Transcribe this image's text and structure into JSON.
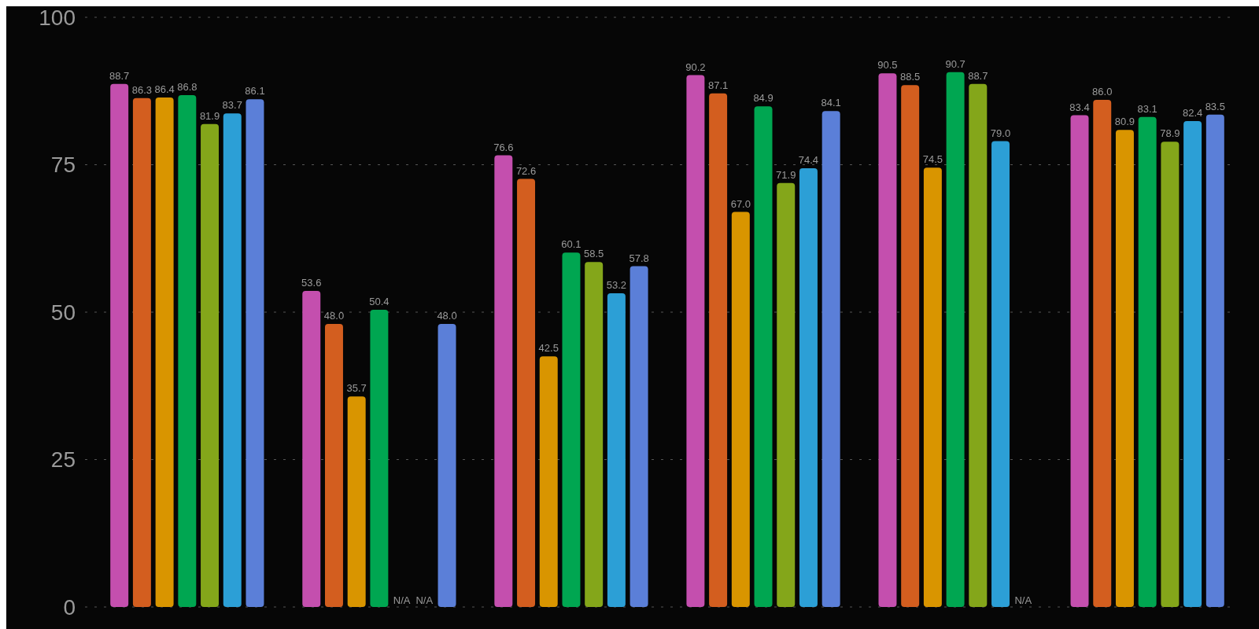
{
  "chart_data": {
    "type": "bar",
    "categories": [
      null,
      null,
      null,
      null,
      null,
      null
    ],
    "series": [
      {
        "color": "#c44fae",
        "values": [
          88.7,
          53.6,
          76.6,
          90.2,
          90.5,
          83.4
        ]
      },
      {
        "color": "#d35e1f",
        "values": [
          86.3,
          48.0,
          72.6,
          87.1,
          88.5,
          86.0
        ],
        "value_labels": [
          "86.3",
          "48.0",
          "72.6",
          "87.1",
          "88.5",
          "86.0"
        ]
      },
      {
        "color": "#d99500",
        "values": [
          86.4,
          35.7,
          42.5,
          67.0,
          74.5,
          80.9
        ],
        "value_labels": [
          "86.4",
          "35.7",
          "42.5",
          "67.0",
          "74.5",
          "80.9"
        ]
      },
      {
        "color": "#00a651",
        "values": [
          86.8,
          50.4,
          60.1,
          84.9,
          90.7,
          83.1
        ]
      },
      {
        "color": "#84a61a",
        "values": [
          81.9,
          null,
          58.5,
          71.9,
          88.7,
          78.9
        ],
        "value_labels": [
          "81.9",
          "N/A",
          "58.5",
          "71.9",
          "88.7",
          "78.9"
        ]
      },
      {
        "color": "#2c9fd6",
        "values": [
          83.7,
          null,
          53.2,
          74.4,
          79.0,
          82.4
        ],
        "value_labels": [
          "83.7",
          "N/A",
          "53.2",
          "74.4",
          "79.0",
          "82.4"
        ]
      },
      {
        "color": "#5b7fd8",
        "values": [
          86.1,
          48.0,
          57.8,
          84.1,
          null,
          83.5
        ],
        "value_labels": [
          "86.1",
          "48.0",
          "57.8",
          "84.1",
          "N/A",
          "83.5"
        ]
      }
    ],
    "data_labels": true,
    "ylim": [
      0,
      100
    ],
    "yticks": [
      0,
      25,
      50,
      75,
      100
    ],
    "grid": "y"
  }
}
